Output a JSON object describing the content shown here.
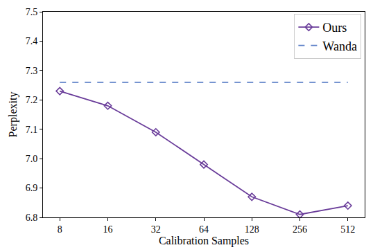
{
  "chart_data": {
    "type": "line",
    "x_label": "Calibration Samples",
    "y_label": "Perplexity",
    "categories": [
      "8",
      "16",
      "32",
      "64",
      "128",
      "256",
      "512"
    ],
    "series": [
      {
        "name": "Ours",
        "color": "#6a3d9a",
        "marker": "diamond",
        "line_style": "solid",
        "values": [
          7.23,
          7.18,
          7.09,
          6.98,
          6.87,
          6.81,
          6.84
        ]
      },
      {
        "name": "Wanda",
        "color": "#5b7fc7",
        "line_style": "dashed",
        "values": [
          7.26,
          7.26,
          7.26,
          7.26,
          7.26,
          7.26,
          7.26
        ]
      }
    ],
    "ylim": [
      6.8,
      7.5
    ],
    "yticks": [
      6.8,
      6.9,
      {
        "value": 7,
        "label": "7.0"
      },
      7.1,
      7.2,
      7.3,
      7.4,
      7.5
    ],
    "grid": false,
    "legend": "upper right"
  }
}
